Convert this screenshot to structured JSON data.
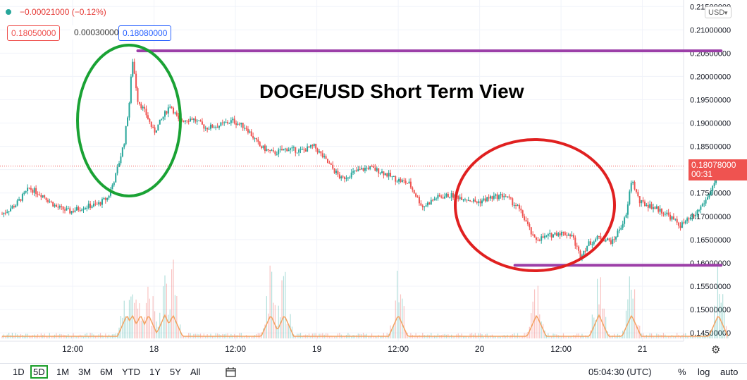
{
  "header": {
    "change_text": "−0.00021000 (−0.12%)",
    "sell_price": "0.18050000",
    "spread": "0.00030000",
    "buy_price": "0.18080000",
    "currency": "USD",
    "last_price": "0.18078000",
    "countdown": "00:31"
  },
  "colors": {
    "up": "#26a69a",
    "down": "#ef5350",
    "volume_ma": "#f4a261",
    "green_circle": "#1aa234",
    "red_circle": "#e02020",
    "level_line": "#9c3fa8"
  },
  "chart_data": {
    "type": "candlestick",
    "title": "DOGE/USD Short Term View",
    "y_ticks": [
      "0.21500000",
      "0.21000000",
      "0.20500000",
      "0.20000000",
      "0.19500000",
      "0.19000000",
      "0.18500000",
      "0.18000000",
      "0.17500000",
      "0.17000000",
      "0.16500000",
      "0.16000000",
      "0.15500000",
      "0.15000000",
      "0.14500000"
    ],
    "ylim": [
      0.1432,
      0.2164
    ],
    "x_ticks": [
      "12:00",
      "18",
      "12:00",
      "19",
      "12:00",
      "20",
      "12:00",
      "21"
    ],
    "price_path": [
      [
        0,
        0.1705
      ],
      [
        0.5,
        0.1725
      ],
      [
        1,
        0.176
      ],
      [
        1.5,
        0.1745
      ],
      [
        2,
        0.172
      ],
      [
        2.5,
        0.171
      ],
      [
        3,
        0.172
      ],
      [
        3.5,
        0.1725
      ],
      [
        3.9,
        0.174
      ],
      [
        4.2,
        0.179
      ],
      [
        4.5,
        0.186
      ],
      [
        4.7,
        0.195
      ],
      [
        4.8,
        0.204
      ],
      [
        5.0,
        0.195
      ],
      [
        5.3,
        0.192
      ],
      [
        5.6,
        0.188
      ],
      [
        5.9,
        0.191
      ],
      [
        6.2,
        0.194
      ],
      [
        6.5,
        0.1905
      ],
      [
        7,
        0.191
      ],
      [
        7.5,
        0.189
      ],
      [
        8,
        0.1895
      ],
      [
        8.5,
        0.1905
      ],
      [
        9,
        0.189
      ],
      [
        9.5,
        0.185
      ],
      [
        10,
        0.1835
      ],
      [
        10.5,
        0.1845
      ],
      [
        11,
        0.184
      ],
      [
        11.5,
        0.185
      ],
      [
        12,
        0.1815
      ],
      [
        12.5,
        0.178
      ],
      [
        13,
        0.1795
      ],
      [
        13.5,
        0.1805
      ],
      [
        14,
        0.1795
      ],
      [
        14.5,
        0.178
      ],
      [
        15,
        0.177
      ],
      [
        15.5,
        0.172
      ],
      [
        16,
        0.174
      ],
      [
        16.5,
        0.1745
      ],
      [
        17,
        0.174
      ],
      [
        17.5,
        0.173
      ],
      [
        18,
        0.174
      ],
      [
        18.5,
        0.1745
      ],
      [
        19.0,
        0.172
      ],
      [
        19.3,
        0.169
      ],
      [
        19.6,
        0.165
      ],
      [
        20,
        0.1655
      ],
      [
        20.5,
        0.1665
      ],
      [
        21,
        0.166
      ],
      [
        21.3,
        0.1615
      ],
      [
        21.6,
        0.164
      ],
      [
        22,
        0.1655
      ],
      [
        22.5,
        0.1645
      ],
      [
        23.0,
        0.17
      ],
      [
        23.2,
        0.178
      ],
      [
        23.5,
        0.173
      ],
      [
        24,
        0.172
      ],
      [
        24.5,
        0.1705
      ],
      [
        25,
        0.168
      ],
      [
        25.5,
        0.17
      ],
      [
        26,
        0.174
      ],
      [
        26.4,
        0.179
      ],
      [
        26.6,
        0.181
      ],
      [
        26.8,
        0.1808
      ]
    ],
    "levels": [
      {
        "from": 5.0,
        "to": 26.5,
        "value": 0.2055
      },
      {
        "from": 18.9,
        "to": 26.5,
        "value": 0.1595
      }
    ],
    "volume_spike_positions": [
      4.6,
      4.8,
      5.1,
      5.4,
      6.0,
      6.3,
      9.9,
      10.4,
      14.6,
      19.7,
      22.0,
      23.2,
      26.4
    ],
    "current_time": "05:04:30 (UTC)"
  },
  "toolbar": {
    "timeframes": [
      "1D",
      "5D",
      "1M",
      "3M",
      "6M",
      "YTD",
      "1Y",
      "5Y",
      "All"
    ],
    "active_timeframe": "5D",
    "time": "05:04:30 (UTC)",
    "percent": "%",
    "log": "log",
    "auto": "auto"
  }
}
